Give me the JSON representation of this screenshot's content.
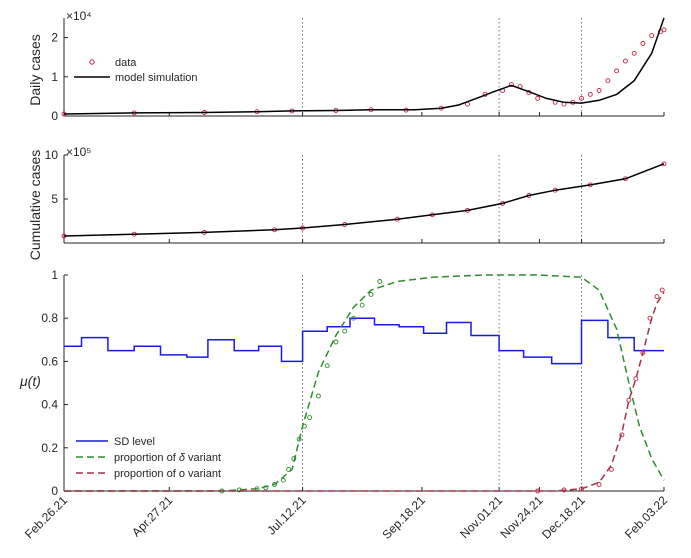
{
  "chart_data": [
    {
      "type": "scatter",
      "ylabel": "Daily cases",
      "y_multiplier": "×10⁴",
      "ylim": [
        0,
        2.5
      ],
      "yticks": [
        "0",
        "1",
        "2"
      ],
      "legend_position": "top-left",
      "series": [
        {
          "name": "data",
          "style": "red circles",
          "x": [
            0,
            40,
            80,
            110,
            130,
            155,
            175,
            195,
            215,
            230,
            240,
            250,
            255,
            260,
            265,
            270,
            280,
            285,
            290,
            295,
            300,
            305,
            310,
            315,
            320,
            325,
            330,
            335,
            340,
            342
          ],
          "y": [
            0.05,
            0.08,
            0.09,
            0.11,
            0.13,
            0.14,
            0.16,
            0.15,
            0.2,
            0.3,
            0.55,
            0.65,
            0.8,
            0.75,
            0.6,
            0.45,
            0.35,
            0.3,
            0.35,
            0.45,
            0.55,
            0.65,
            0.9,
            1.15,
            1.4,
            1.6,
            1.85,
            2.05,
            2.15,
            2.2
          ]
        },
        {
          "name": "model simulation",
          "style": "black line",
          "x": [
            0,
            40,
            80,
            110,
            130,
            155,
            175,
            200,
            215,
            225,
            235,
            245,
            255,
            265,
            275,
            285,
            295,
            305,
            315,
            325,
            335,
            342
          ],
          "y": [
            0.05,
            0.08,
            0.09,
            0.11,
            0.13,
            0.14,
            0.16,
            0.16,
            0.2,
            0.28,
            0.45,
            0.62,
            0.78,
            0.62,
            0.45,
            0.35,
            0.33,
            0.4,
            0.55,
            0.9,
            1.6,
            2.5
          ]
        }
      ]
    },
    {
      "type": "scatter",
      "ylabel": "Cumulative cases",
      "y_multiplier": "×10⁵",
      "ylim": [
        0,
        10
      ],
      "yticks": [
        "5",
        "10"
      ],
      "series": [
        {
          "name": "data",
          "style": "red circles",
          "x": [
            0,
            40,
            80,
            120,
            136,
            160,
            190,
            210,
            230,
            250,
            265,
            280,
            300,
            320,
            342
          ],
          "y": [
            0.8,
            1.0,
            1.2,
            1.5,
            1.7,
            2.1,
            2.7,
            3.2,
            3.7,
            4.5,
            5.4,
            6.0,
            6.6,
            7.3,
            9.0
          ]
        },
        {
          "name": "model simulation",
          "style": "black line",
          "x": [
            0,
            40,
            80,
            120,
            136,
            160,
            190,
            210,
            230,
            250,
            265,
            280,
            300,
            320,
            342
          ],
          "y": [
            0.8,
            1.0,
            1.2,
            1.5,
            1.7,
            2.1,
            2.7,
            3.2,
            3.7,
            4.5,
            5.4,
            6.0,
            6.6,
            7.3,
            9.0
          ]
        }
      ]
    },
    {
      "type": "line",
      "ylabel": "μ(t)",
      "ylim": [
        0,
        1
      ],
      "yticks": [
        "0",
        "0.2",
        "0.4",
        "0.6",
        "0.8",
        "1"
      ],
      "xtick_labels": [
        "Feb.26.21",
        "Apr.27.21",
        "Jul.12.21",
        "Sep.18.21",
        "Nov.01.21",
        "Nov.24.21",
        "Dec.18.21",
        "Feb.03.22"
      ],
      "xtick_days": [
        0,
        60,
        136,
        204,
        248,
        271,
        295,
        342
      ],
      "vlines_days": [
        136,
        248,
        295
      ],
      "legend_position": "bottom-left",
      "series": [
        {
          "name": "SD level",
          "style": "blue step line",
          "steps": [
            {
              "start": 0,
              "value": 0.67
            },
            {
              "start": 10,
              "value": 0.71
            },
            {
              "start": 25,
              "value": 0.65
            },
            {
              "start": 40,
              "value": 0.67
            },
            {
              "start": 55,
              "value": 0.63
            },
            {
              "start": 70,
              "value": 0.62
            },
            {
              "start": 82,
              "value": 0.7
            },
            {
              "start": 97,
              "value": 0.65
            },
            {
              "start": 111,
              "value": 0.67
            },
            {
              "start": 124,
              "value": 0.6
            },
            {
              "start": 136,
              "value": 0.74
            },
            {
              "start": 150,
              "value": 0.76
            },
            {
              "start": 163,
              "value": 0.8
            },
            {
              "start": 177,
              "value": 0.77
            },
            {
              "start": 191,
              "value": 0.76
            },
            {
              "start": 205,
              "value": 0.73
            },
            {
              "start": 218,
              "value": 0.78
            },
            {
              "start": 232,
              "value": 0.72
            },
            {
              "start": 248,
              "value": 0.65
            },
            {
              "start": 262,
              "value": 0.62
            },
            {
              "start": 278,
              "value": 0.59
            },
            {
              "start": 295,
              "value": 0.79
            },
            {
              "start": 310,
              "value": 0.71
            },
            {
              "start": 325,
              "value": 0.65
            }
          ],
          "end": 342
        },
        {
          "name": "proportion of δ variant",
          "style": "green dashed line",
          "x": [
            0,
            90,
            110,
            120,
            130,
            136,
            145,
            155,
            165,
            175,
            190,
            210,
            240,
            270,
            295,
            305,
            315,
            322,
            328,
            335,
            342
          ],
          "y": [
            0,
            0,
            0.01,
            0.03,
            0.1,
            0.3,
            0.55,
            0.72,
            0.85,
            0.93,
            0.97,
            0.99,
            1,
            1,
            0.99,
            0.93,
            0.75,
            0.5,
            0.3,
            0.15,
            0.05
          ]
        },
        {
          "name": "proportion of δ variant data",
          "style": "green circles",
          "legend": false,
          "x": [
            90,
            100,
            110,
            115,
            120,
            125,
            128,
            131,
            134,
            137,
            140,
            145,
            150,
            155,
            160,
            165,
            170,
            175,
            180
          ],
          "y": [
            0,
            0.005,
            0.01,
            0.015,
            0.03,
            0.05,
            0.1,
            0.15,
            0.24,
            0.3,
            0.34,
            0.44,
            0.58,
            0.69,
            0.74,
            0.8,
            0.86,
            0.91,
            0.97
          ]
        },
        {
          "name": "proportion of o variant",
          "style": "red dashed line",
          "x": [
            0,
            280,
            295,
            305,
            312,
            318,
            322,
            326,
            330,
            335,
            338,
            342
          ],
          "y": [
            0,
            0,
            0.01,
            0.04,
            0.12,
            0.27,
            0.42,
            0.52,
            0.64,
            0.8,
            0.87,
            0.92
          ]
        },
        {
          "name": "proportion of o variant data",
          "style": "red circles",
          "legend": false,
          "x": [
            270,
            285,
            295,
            305,
            312,
            318,
            322,
            326,
            330,
            334,
            338,
            341
          ],
          "y": [
            0,
            0.005,
            0.01,
            0.03,
            0.1,
            0.26,
            0.42,
            0.52,
            0.64,
            0.8,
            0.9,
            0.93
          ]
        }
      ]
    }
  ],
  "legend1": {
    "data": "data",
    "model": "model simulation"
  },
  "legend3": {
    "sd": "SD level",
    "delta_prefix": "proportion of ",
    "delta_symbol": "δ",
    "delta_suffix": " variant",
    "omicron": "proportion of o variant"
  },
  "colors": {
    "data_red": "#cc2244",
    "model_black": "#000000",
    "sd_blue": "#1a1ae6",
    "delta_green": "#2e8b2e",
    "omicron_red": "#a0344a",
    "vline": "#555555"
  }
}
